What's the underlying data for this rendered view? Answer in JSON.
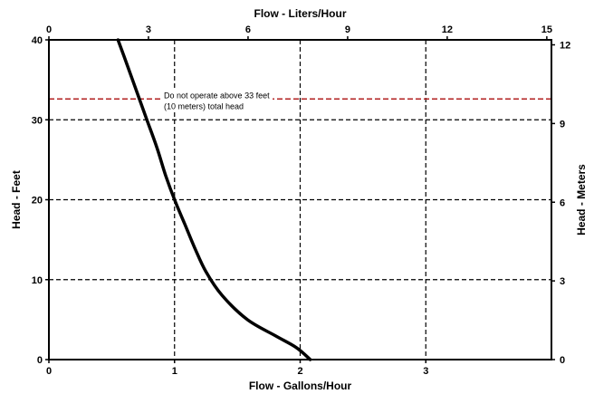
{
  "chart_data": {
    "type": "line",
    "xlabel_bottom": "Flow - Gallons/Hour",
    "xlabel_top": "Flow - Liters/Hour",
    "ylabel_left": "Head - Feet",
    "ylabel_right": "Head - Meters",
    "xlim_bottom": [
      0,
      4
    ],
    "xticks_bottom": [
      0,
      1,
      2,
      3
    ],
    "xlim_top": [
      0,
      15.14
    ],
    "xticks_top": [
      0,
      3,
      6,
      9,
      12,
      15
    ],
    "ylim_left": [
      0,
      40
    ],
    "yticks_left": [
      0,
      10,
      20,
      30,
      40
    ],
    "ylim_right": [
      0,
      12.19
    ],
    "yticks_right": [
      0,
      3,
      6,
      9,
      12
    ],
    "grid": "dashed at tick values",
    "series": [
      {
        "x": [
          0.55,
          0.62,
          0.7,
          0.78,
          0.86,
          0.93,
          1.0,
          1.08,
          1.16,
          1.25,
          1.38,
          1.58,
          1.8,
          1.97,
          2.08
        ],
        "y": [
          40,
          37,
          33.5,
          30,
          26.5,
          23,
          20,
          17,
          14,
          11,
          8,
          5,
          3,
          1.5,
          0
        ],
        "color": "#000000"
      }
    ],
    "limit_line": {
      "y": 32.6,
      "color": "#b22222",
      "annotation": [
        "Do not operate above 33 feet",
        "(10 meters) total head"
      ]
    }
  }
}
